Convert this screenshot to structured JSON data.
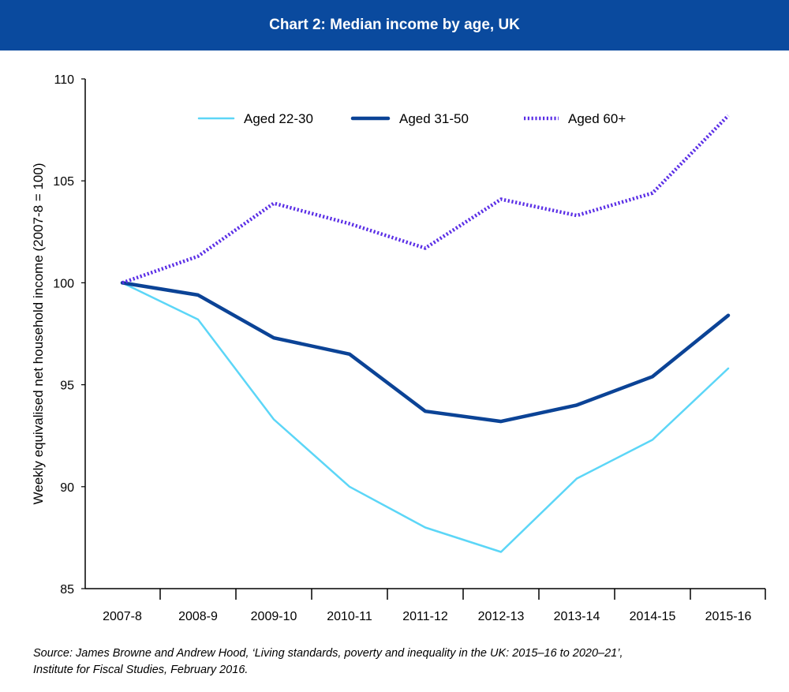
{
  "title": "Chart 2: Median income by age, UK",
  "source": {
    "line1": "Source: James Browne and Andrew Hood, ‘Living standards, poverty and inequality in the UK: 2015–16 to 2020–21’,",
    "line2": "Institute for Fiscal Studies, February 2016."
  },
  "colors": {
    "header_bg": "#0a4a9e",
    "aged_22_30": "#5cd6f7",
    "aged_31_50": "#0b4396",
    "aged_60_plus": "#5a2ee6"
  },
  "chart_data": {
    "type": "line",
    "ylabel": "Weekly equivalised net household income (2007-8 = 100)",
    "xlabel": "",
    "ylim": [
      85,
      110
    ],
    "yticks": [
      85,
      90,
      95,
      100,
      105,
      110
    ],
    "grid": false,
    "legend_position": "top",
    "categories": [
      "2007-8",
      "2008-9",
      "2009-10",
      "2010-11",
      "2011-12",
      "2012-13",
      "2013-14",
      "2014-15",
      "2015-16"
    ],
    "series": [
      {
        "name": "Aged 22-30",
        "style": "solid",
        "color": "#5cd6f7",
        "values": [
          100,
          98.2,
          93.3,
          90.0,
          88.0,
          86.8,
          90.4,
          92.3,
          95.8
        ]
      },
      {
        "name": "Aged 31-50",
        "style": "solid-thick",
        "color": "#0b4396",
        "values": [
          100,
          99.4,
          97.3,
          96.5,
          93.7,
          93.2,
          94.0,
          95.4,
          98.4
        ]
      },
      {
        "name": "Aged 60+",
        "style": "dotted",
        "color": "#5a2ee6",
        "values": [
          100,
          101.3,
          103.9,
          102.9,
          101.7,
          104.1,
          103.3,
          104.4,
          108.2
        ]
      }
    ]
  }
}
